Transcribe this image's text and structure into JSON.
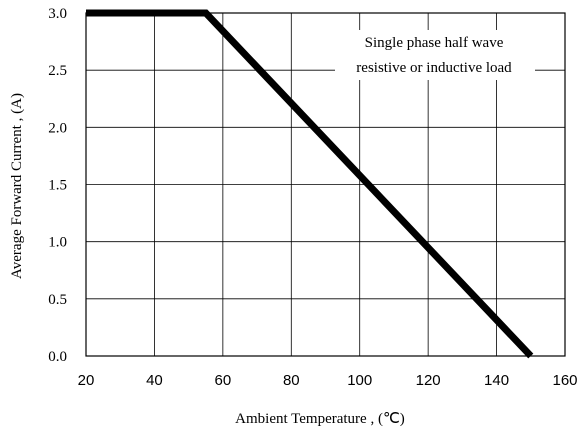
{
  "chart_data": {
    "type": "line",
    "title": "",
    "xlabel": "Ambient Temperature , (℃)",
    "ylabel": "Average Forward Current , (A)",
    "xlim": [
      20,
      160
    ],
    "ylim": [
      0,
      3
    ],
    "x_ticks": [
      "20",
      "40",
      "60",
      "80",
      "100",
      "120",
      "140",
      "160"
    ],
    "y_ticks": [
      "0.0",
      "0.5",
      "1.0",
      "1.5",
      "2.0",
      "2.5",
      "3.0"
    ],
    "grid": true,
    "annotation": [
      "Single phase half wave",
      "resistive or inductive load"
    ],
    "series": [
      {
        "x": [
          20,
          55,
          150
        ],
        "y": [
          3.0,
          3.0,
          0.0
        ]
      }
    ],
    "line_color": "#000000"
  }
}
